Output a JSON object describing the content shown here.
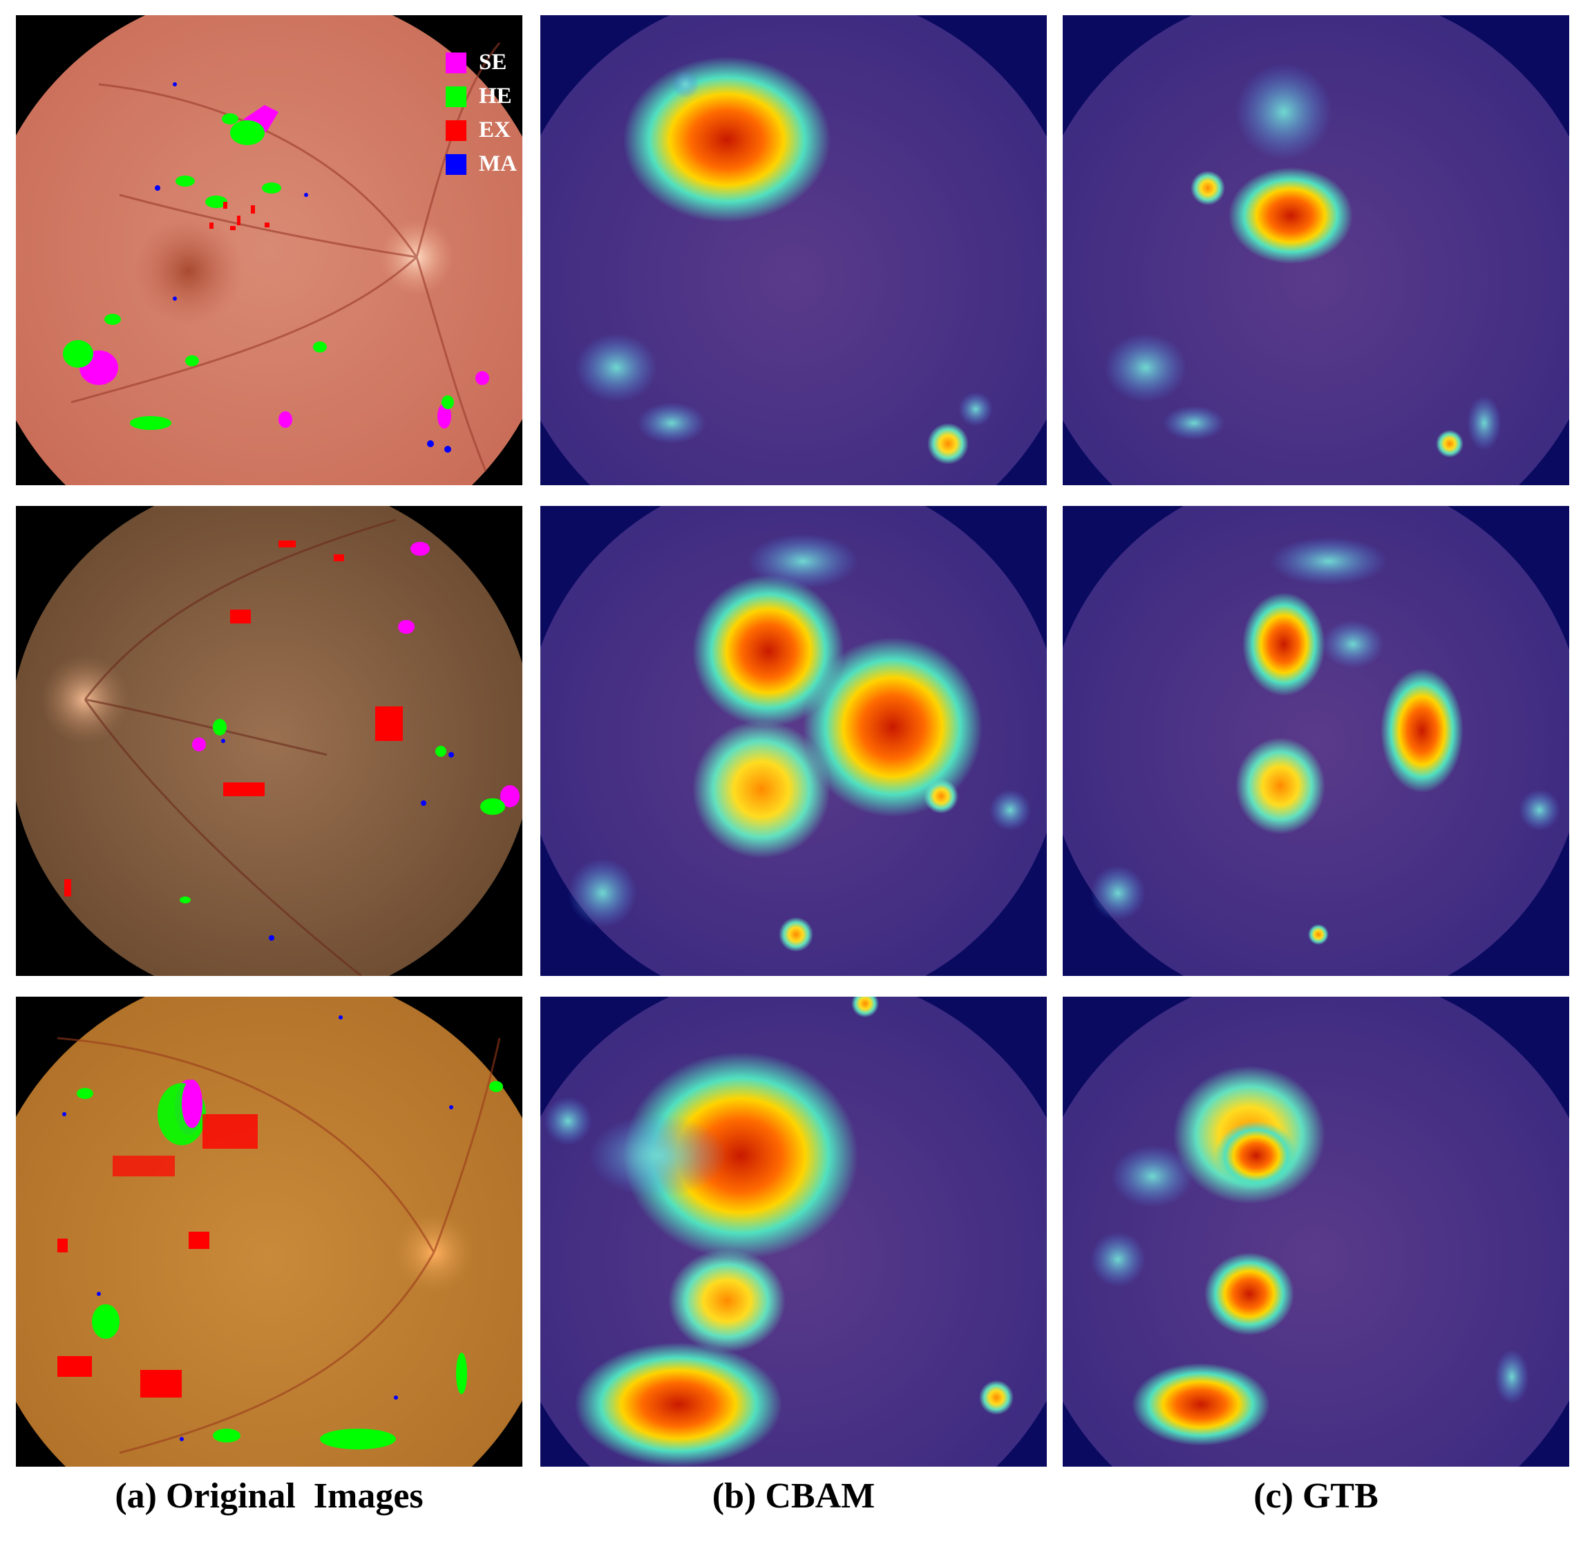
{
  "legend": [
    {
      "label": "SE",
      "color": "#ff00ff"
    },
    {
      "label": "HE",
      "color": "#00ff00"
    },
    {
      "label": "EX",
      "color": "#ff0000"
    },
    {
      "label": "MA",
      "color": "#0000ff"
    }
  ],
  "captions": {
    "original": "(a) Original  Images",
    "cbam": "(b) CBAM",
    "gtb": "(c) GTB"
  },
  "colors": {
    "fundus_row1": "#d8806a",
    "fundus_row2": "#9a7050",
    "fundus_row3": "#c98a3a",
    "heatmap_base": "#3a2a8a",
    "heatmap_hot": "#ff2a00"
  }
}
